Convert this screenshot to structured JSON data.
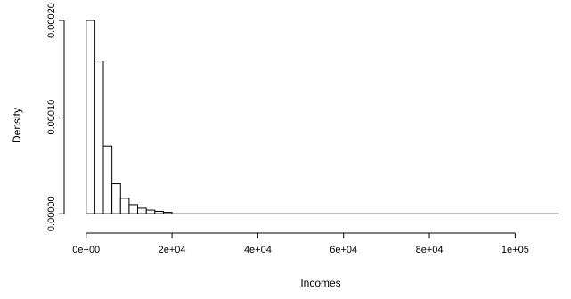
{
  "chart_data": {
    "type": "bar",
    "subtype": "histogram",
    "title": "",
    "xlabel": "Incomes",
    "ylabel": "Density",
    "bin_width": 2000,
    "bin_start": 0,
    "values": [
      0.0002,
      0.000158,
      7e-05,
      3.1e-05,
      1.6e-05,
      9.5e-06,
      5.8e-06,
      3.8e-06,
      2.5e-06,
      1.5e-06
    ],
    "x_extent": [
      0,
      110000
    ],
    "xlim": [
      -1400,
      113000
    ],
    "ylim": [
      -9e-06,
      0.0002
    ],
    "x_ticks": [
      {
        "value": 0,
        "label": "0e+00"
      },
      {
        "value": 20000,
        "label": "2e+04"
      },
      {
        "value": 40000,
        "label": "4e+04"
      },
      {
        "value": 60000,
        "label": "6e+04"
      },
      {
        "value": 80000,
        "label": "8e+04"
      },
      {
        "value": 100000,
        "label": "1e+05"
      }
    ],
    "y_ticks": [
      {
        "value": 0,
        "label": "0.00000"
      },
      {
        "value": 0.0001,
        "label": "0.00010"
      },
      {
        "value": 0.0002,
        "label": "0.00020"
      }
    ],
    "grid": false,
    "legend": "none"
  }
}
